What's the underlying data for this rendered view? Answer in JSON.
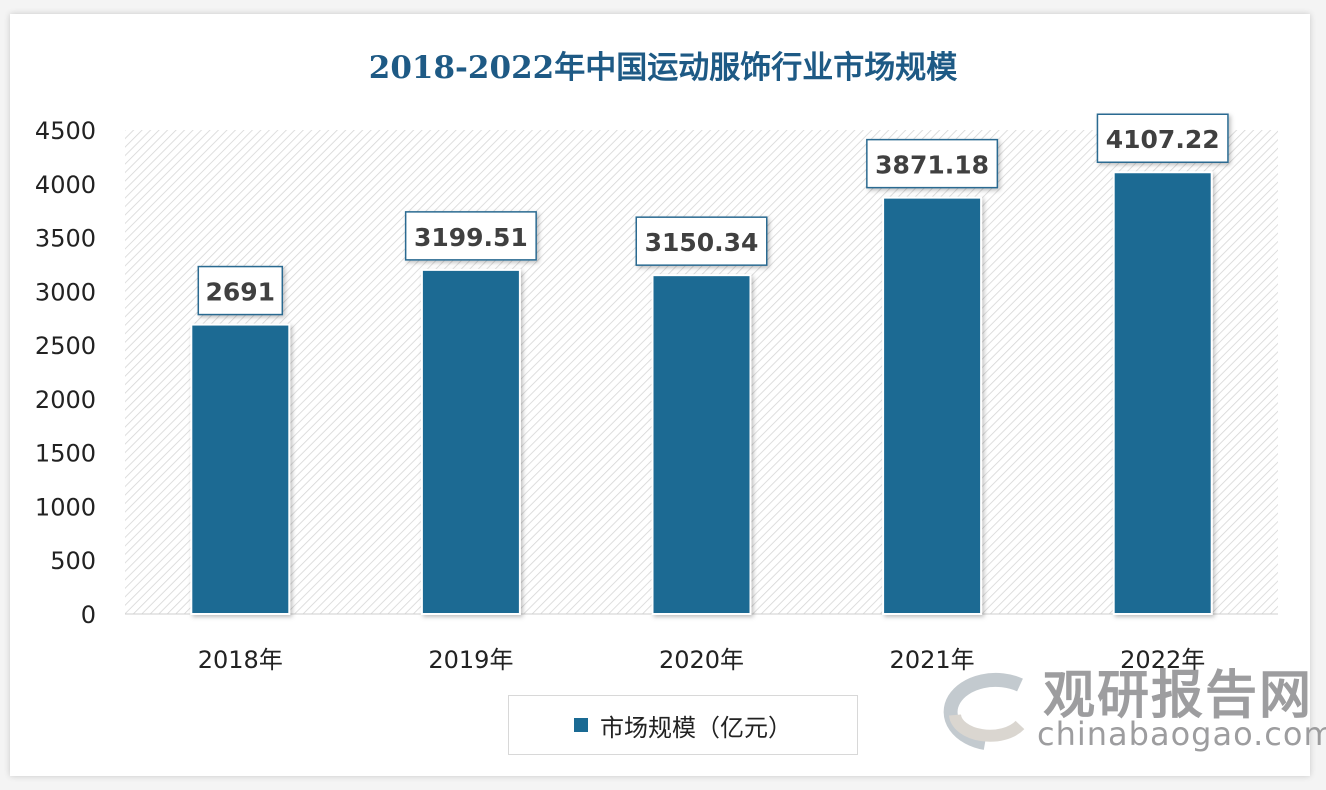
{
  "chart_data": {
    "type": "bar",
    "title": "2018-2022年中国运动服饰行业市场规模",
    "categories": [
      "2018年",
      "2019年",
      "2020年",
      "2021年",
      "2022年"
    ],
    "series": [
      {
        "name": "市场规模（亿元）",
        "values": [
          2691,
          3199.51,
          3150.34,
          3871.18,
          4107.22
        ],
        "labels": [
          "2691",
          "3199.51",
          "3150.34",
          "3871.18",
          "4107.22"
        ]
      }
    ],
    "ylim": [
      0,
      4500
    ],
    "yticks": [
      0,
      500,
      1000,
      1500,
      2000,
      2500,
      3000,
      3500,
      4000,
      4500
    ],
    "grid": false,
    "legend": "bottom",
    "colors": {
      "bar": "#1a6a93",
      "title": "#1e5a85",
      "label_border": "#2a6a91"
    }
  },
  "watermark": {
    "cn": "观研报告网",
    "en": "chinabaogao.com"
  }
}
